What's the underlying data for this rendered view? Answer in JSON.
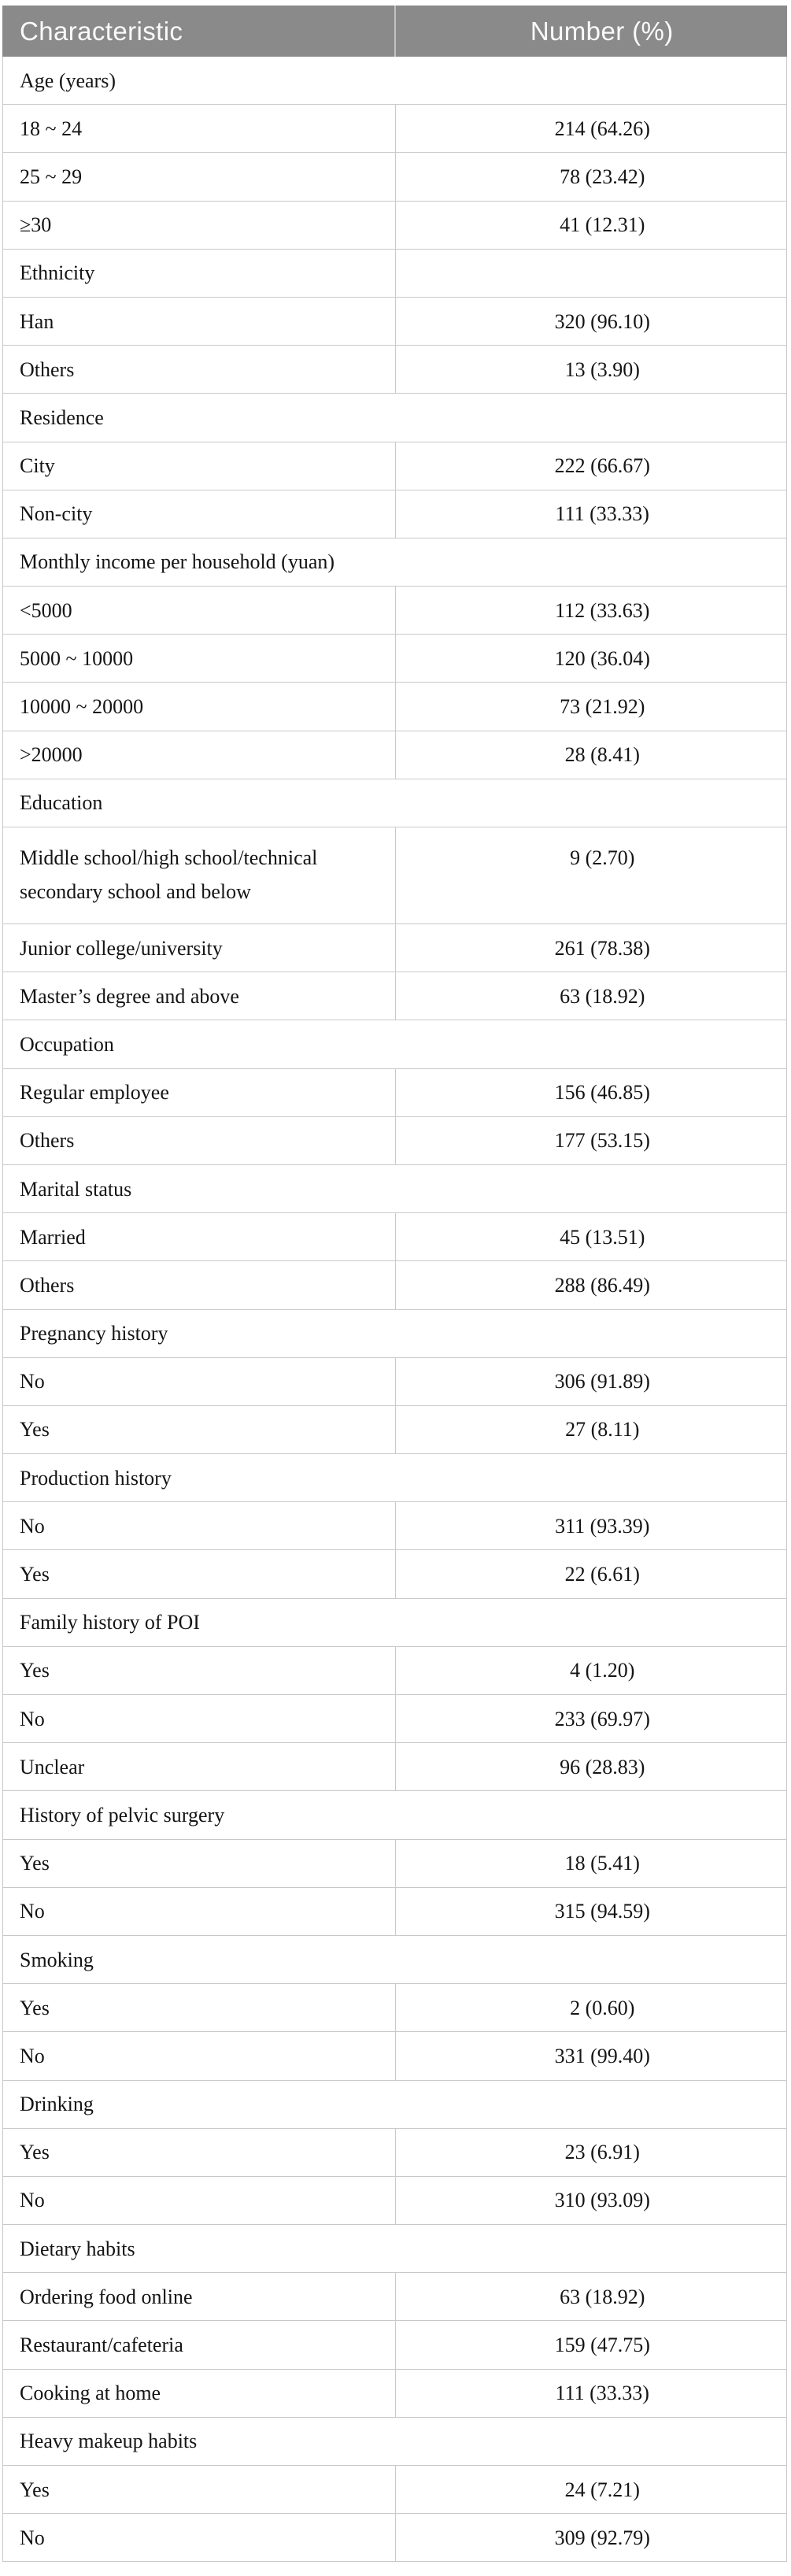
{
  "colors": {
    "page_bg": "#ffffff",
    "header_bg": "#8a8a8a",
    "header_text": "#fafafa",
    "header_divider": "#c2c2c2",
    "body_text": "#141414",
    "border": "#c9c9c9"
  },
  "table": {
    "columns": [
      "Characteristic",
      "Number (%)"
    ],
    "rows": [
      {
        "t": "cat",
        "label": "Age (years)",
        "divider": false
      },
      {
        "t": "data",
        "label": "18 ~ 24",
        "value": "214 (64.26)"
      },
      {
        "t": "data",
        "label": "25 ~ 29",
        "value": "78 (23.42)"
      },
      {
        "t": "data",
        "label": "≥30",
        "value": "41 (12.31)"
      },
      {
        "t": "cat",
        "label": "Ethnicity",
        "divider": true
      },
      {
        "t": "data",
        "label": "Han",
        "value": "320 (96.10)"
      },
      {
        "t": "data",
        "label": "Others",
        "value": "13 (3.90)"
      },
      {
        "t": "cat",
        "label": "Residence",
        "divider": false
      },
      {
        "t": "data",
        "label": "City",
        "value": "222 (66.67)"
      },
      {
        "t": "data",
        "label": "Non-city",
        "value": "111 (33.33)"
      },
      {
        "t": "cat",
        "label": "Monthly income per household (yuan)",
        "divider": false
      },
      {
        "t": "data",
        "label": "<5000",
        "value": "112 (33.63)"
      },
      {
        "t": "data",
        "label": "5000 ~ 10000",
        "value": "120 (36.04)"
      },
      {
        "t": "data",
        "label": "10000 ~ 20000",
        "value": "73 (21.92)"
      },
      {
        "t": "data",
        "label": ">20000",
        "value": "28 (8.41)"
      },
      {
        "t": "cat",
        "label": "Education",
        "divider": false
      },
      {
        "t": "data",
        "label": "Middle school/high school/technical secondary school and below",
        "value": "9 (2.70)",
        "tall": true
      },
      {
        "t": "data",
        "label": "Junior college/university",
        "value": "261 (78.38)"
      },
      {
        "t": "data",
        "label": "Master’s degree and above",
        "value": "63 (18.92)"
      },
      {
        "t": "cat",
        "label": "Occupation",
        "divider": false
      },
      {
        "t": "data",
        "label": "Regular employee",
        "value": "156 (46.85)"
      },
      {
        "t": "data",
        "label": "Others",
        "value": "177 (53.15)"
      },
      {
        "t": "cat",
        "label": "Marital status",
        "divider": false
      },
      {
        "t": "data",
        "label": "Married",
        "value": "45 (13.51)"
      },
      {
        "t": "data",
        "label": "Others",
        "value": "288 (86.49)"
      },
      {
        "t": "cat",
        "label": "Pregnancy history",
        "divider": false
      },
      {
        "t": "data",
        "label": "No",
        "value": "306 (91.89)"
      },
      {
        "t": "data",
        "label": "Yes",
        "value": "27 (8.11)"
      },
      {
        "t": "cat",
        "label": "Production history",
        "divider": false
      },
      {
        "t": "data",
        "label": "No",
        "value": "311 (93.39)"
      },
      {
        "t": "data",
        "label": "Yes",
        "value": "22 (6.61)"
      },
      {
        "t": "cat",
        "label": "Family history of POI",
        "divider": false
      },
      {
        "t": "data",
        "label": "Yes",
        "value": "4 (1.20)"
      },
      {
        "t": "data",
        "label": "No",
        "value": "233 (69.97)"
      },
      {
        "t": "data",
        "label": "Unclear",
        "value": "96 (28.83)"
      },
      {
        "t": "cat",
        "label": "History of pelvic surgery",
        "divider": false
      },
      {
        "t": "data",
        "label": "Yes",
        "value": "18 (5.41)"
      },
      {
        "t": "data",
        "label": "No",
        "value": "315 (94.59)"
      },
      {
        "t": "cat",
        "label": "Smoking",
        "divider": false
      },
      {
        "t": "data",
        "label": "Yes",
        "value": "2 (0.60)"
      },
      {
        "t": "data",
        "label": "No",
        "value": "331 (99.40)"
      },
      {
        "t": "cat",
        "label": "Drinking",
        "divider": false
      },
      {
        "t": "data",
        "label": "Yes",
        "value": "23 (6.91)"
      },
      {
        "t": "data",
        "label": "No",
        "value": "310 (93.09)"
      },
      {
        "t": "cat",
        "label": "Dietary habits",
        "divider": false
      },
      {
        "t": "data",
        "label": "Ordering food online",
        "value": "63 (18.92)"
      },
      {
        "t": "data",
        "label": "Restaurant/cafeteria",
        "value": "159 (47.75)"
      },
      {
        "t": "data",
        "label": "Cooking at home",
        "value": "111 (33.33)"
      },
      {
        "t": "cat",
        "label": "Heavy makeup habits",
        "divider": false
      },
      {
        "t": "data",
        "label": "Yes",
        "value": "24 (7.21)"
      },
      {
        "t": "data",
        "label": "No",
        "value": "309 (92.79)"
      }
    ]
  }
}
